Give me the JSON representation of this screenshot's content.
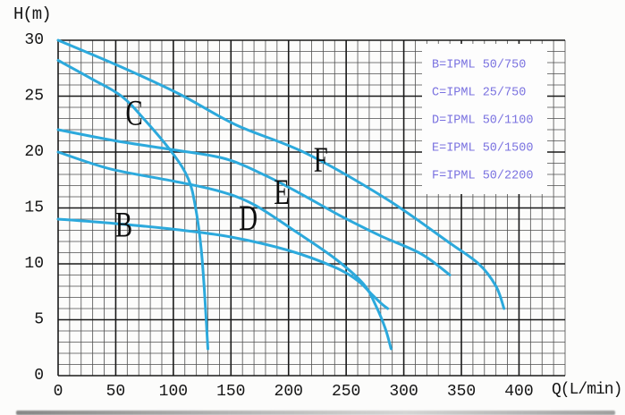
{
  "chart_data": {
    "type": "line",
    "title": "",
    "xlabel": "Q(L/min)",
    "ylabel": "H(m)",
    "xlim": [
      0,
      440
    ],
    "ylim": [
      0,
      30
    ],
    "x_ticks": [
      0,
      50,
      100,
      150,
      200,
      250,
      300,
      350,
      400
    ],
    "y_ticks": [
      0,
      5,
      10,
      15,
      20,
      25,
      30
    ],
    "grid": {
      "on": true,
      "minor_x_step": 10,
      "minor_y_step": 1,
      "major_x_step": 50,
      "major_y_step": 5
    },
    "legend_position": "top-right",
    "series": [
      {
        "key": "B",
        "model": "IPML 50/750",
        "legend_label": "B=IPML 50/750",
        "curve_label": "B",
        "label_pos": {
          "q": 57,
          "h": 13.5
        },
        "shutoff_head_m": 14,
        "max_flow_l_min": 286,
        "points": [
          [
            0,
            14
          ],
          [
            50,
            13.6
          ],
          [
            100,
            13.1
          ],
          [
            150,
            12.4
          ],
          [
            200,
            11.2
          ],
          [
            240,
            9.7
          ],
          [
            260,
            8.5
          ],
          [
            272,
            7.3
          ],
          [
            280,
            6.5
          ],
          [
            286,
            6.0
          ]
        ]
      },
      {
        "key": "C",
        "model": "IPML 25/750",
        "legend_label": "C=IPML 25/750",
        "curve_label": "C",
        "label_pos": {
          "q": 66,
          "h": 23.5
        },
        "shutoff_head_m": 28.2,
        "max_flow_l_min": 130,
        "points": [
          [
            0,
            28.2
          ],
          [
            30,
            26.5
          ],
          [
            55,
            25.0
          ],
          [
            75,
            22.9
          ],
          [
            100,
            19.8
          ],
          [
            113,
            17.6
          ],
          [
            119,
            15.2
          ],
          [
            124,
            11.5
          ],
          [
            127,
            7.5
          ],
          [
            130,
            2.4
          ]
        ]
      },
      {
        "key": "D",
        "model": "IPML 50/1100",
        "legend_label": "D=IPML 50/1100",
        "curve_label": "D",
        "label_pos": {
          "q": 165,
          "h": 14.1
        },
        "shutoff_head_m": 20,
        "max_flow_l_min": 289,
        "points": [
          [
            0,
            20
          ],
          [
            45,
            18.5
          ],
          [
            100,
            17.4
          ],
          [
            140,
            16.5
          ],
          [
            170,
            15.3
          ],
          [
            206,
            12.9
          ],
          [
            240,
            10.5
          ],
          [
            265,
            8.2
          ],
          [
            276,
            6.2
          ],
          [
            284,
            4.2
          ],
          [
            289,
            2.4
          ]
        ]
      },
      {
        "key": "E",
        "model": "IPML 50/1500",
        "legend_label": "E=IPML 50/1500",
        "curve_label": "E",
        "label_pos": {
          "q": 194,
          "h": 16.4
        },
        "shutoff_head_m": 22,
        "max_flow_l_min": 340,
        "points": [
          [
            0,
            22
          ],
          [
            50,
            21
          ],
          [
            100,
            20.2
          ],
          [
            145,
            19.4
          ],
          [
            180,
            17.9
          ],
          [
            210,
            16.3
          ],
          [
            245,
            14.3
          ],
          [
            280,
            12.5
          ],
          [
            315,
            10.9
          ],
          [
            340,
            9.0
          ]
        ]
      },
      {
        "key": "F",
        "model": "IPML 50/2200",
        "legend_label": "F=IPML 50/2200",
        "curve_label": "F",
        "label_pos": {
          "q": 228,
          "h": 19.3
        },
        "shutoff_head_m": 30,
        "max_flow_l_min": 387,
        "points": [
          [
            0,
            30
          ],
          [
            55,
            27.6
          ],
          [
            105,
            25.2
          ],
          [
            155,
            22.4
          ],
          [
            215,
            19.9
          ],
          [
            285,
            15.8
          ],
          [
            338,
            12.0
          ],
          [
            365,
            10.0
          ],
          [
            380,
            8.0
          ],
          [
            387,
            6.0
          ]
        ]
      }
    ]
  },
  "colors": {
    "curve": "#2ca9dc",
    "legend_text": "#7a72e0",
    "legend_background": "#fdfdfd",
    "grid_minor": "#4e4e4e",
    "grid_major": "#191919",
    "axis_text": "#141414",
    "curve_label_text": "#0d0d0d",
    "background": "#fcfcfb"
  }
}
